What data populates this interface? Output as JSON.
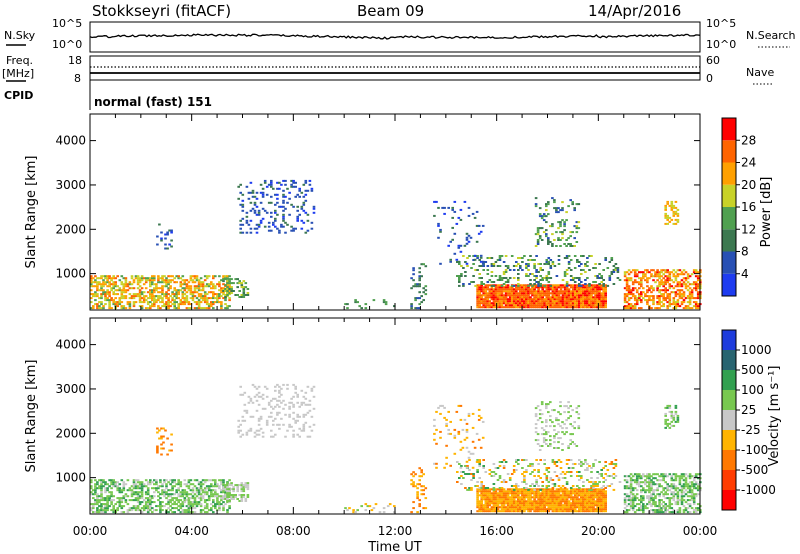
{
  "header": {
    "station": "Stokkseyri (fitACF)",
    "beam": "Beam 09",
    "date": "14/Apr/2016"
  },
  "nsky_panel": {
    "left_label": "N.Sky",
    "left_ticks": [
      "10^5",
      "10^0"
    ],
    "right_ticks": [
      "10^5",
      "10^0"
    ],
    "right_label": "N.Search"
  },
  "freq_panel": {
    "left_label_1": "Freq.",
    "left_label_2": "[MHz]",
    "left_ticks": [
      "18",
      "8"
    ],
    "right_ticks": [
      "60",
      "0"
    ],
    "right_label": "Nave"
  },
  "cpid": {
    "label": "CPID",
    "value": "normal (fast) 151"
  },
  "colors": {
    "power": [
      "#1e3cf0",
      "#2850b4",
      "#3c7850",
      "#50a050",
      "#c8d228",
      "#ffa000",
      "#ff6400",
      "#ff0000"
    ],
    "velocity": [
      "#ff0000",
      "#ff3c00",
      "#ff7800",
      "#ffb400",
      "#c8c8c8",
      "#78c850",
      "#32a050",
      "#286470",
      "#1e3cdc"
    ]
  },
  "chart_data": [
    {
      "type": "heatmap",
      "xlabel": "",
      "ylabel": "Slant Range [km]",
      "x_ticks": [
        "00:00",
        "04:00",
        "08:00",
        "12:00",
        "16:00",
        "20:00",
        "00:00"
      ],
      "y_ticks": [
        "1000",
        "2000",
        "3000",
        "4000"
      ],
      "ylim": [
        180,
        4600
      ],
      "colorbar": {
        "label": "Power [dB]",
        "ticks": [
          "4",
          "8",
          "12",
          "16",
          "20",
          "24",
          "28"
        ]
      }
    },
    {
      "type": "heatmap",
      "xlabel": "Time UT",
      "ylabel": "Slant Range [km]",
      "x_ticks": [
        "00:00",
        "04:00",
        "08:00",
        "12:00",
        "16:00",
        "20:00",
        "00:00"
      ],
      "y_ticks": [
        "1000",
        "2000",
        "3000",
        "4000"
      ],
      "ylim": [
        180,
        4600
      ],
      "colorbar": {
        "label": "Velocity [m s⁻¹]",
        "ticks": [
          "1000",
          "500",
          "100",
          "25",
          "-25",
          "-100",
          "-500",
          "-1000"
        ]
      }
    }
  ]
}
